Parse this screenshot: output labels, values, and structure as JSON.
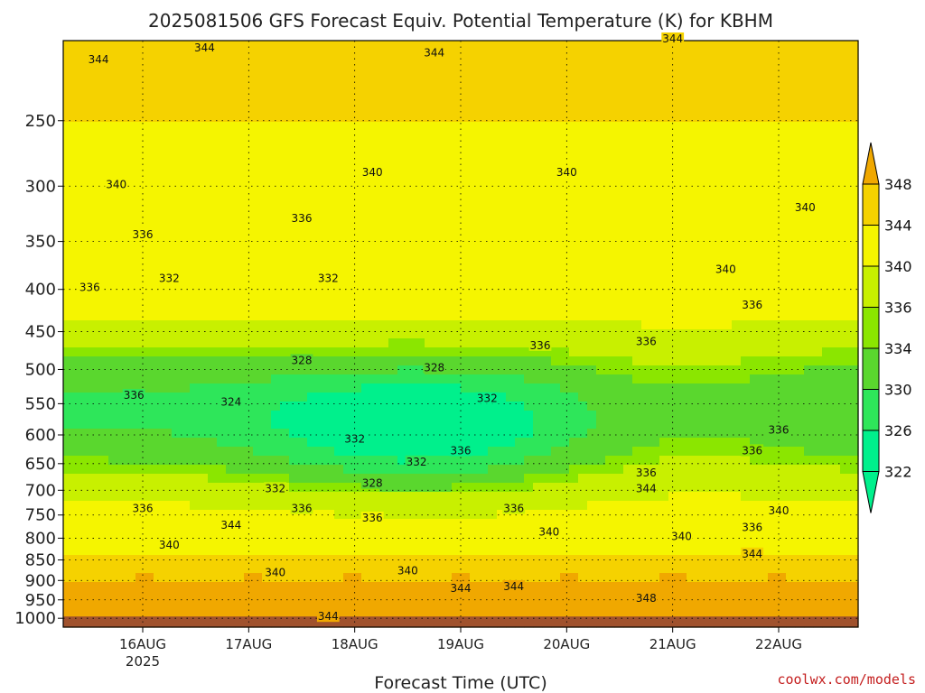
{
  "chart_data": {
    "type": "heatmap",
    "title": "2025081506 GFS Forecast Equiv. Potential Temperature (K) for KBHM",
    "xlabel": "Forecast Time (UTC)",
    "ylabel": "",
    "credit": "coolwx.com/models",
    "y_scale": "log",
    "y_reversed": true,
    "y_ticks": [
      250,
      300,
      350,
      400,
      450,
      500,
      550,
      600,
      650,
      700,
      750,
      800,
      850,
      900,
      950,
      1000
    ],
    "y_tick_labels": [
      "250",
      "300",
      "350",
      "400",
      "450",
      "500",
      "550",
      "600",
      "650",
      "700",
      "750",
      "800",
      "850",
      "900",
      "950",
      "1000"
    ],
    "ylim": [
      1025,
      200
    ],
    "xlim": [
      "2025-08-15T06:00",
      "2025-08-22T18:00"
    ],
    "x_ticks": [
      "2025-08-16T00:00",
      "2025-08-17T00:00",
      "2025-08-18T00:00",
      "2025-08-19T00:00",
      "2025-08-20T00:00",
      "2025-08-21T00:00",
      "2025-08-22T00:00"
    ],
    "x_tick_labels": [
      "16AUG",
      "17AUG",
      "18AUG",
      "19AUG",
      "20AUG",
      "21AUG",
      "22AUG"
    ],
    "x_year_label": "2025",
    "grid": true,
    "colorbar": {
      "levels": [
        322,
        326,
        330,
        334,
        336,
        340,
        344,
        348
      ],
      "labels": [
        "322",
        "326",
        "330",
        "334",
        "336",
        "340",
        "344",
        "348"
      ],
      "colors": [
        "#00f08c",
        "#2ee65a",
        "#5ad72e",
        "#8be600",
        "#c8f000",
        "#f5f500",
        "#f5d200",
        "#f0a800"
      ],
      "extend": "both"
    },
    "ground_color": "#a0522d",
    "contour_labels": [
      {
        "t": "2025-08-15T14:00",
        "p": 212,
        "v": "344"
      },
      {
        "t": "2025-08-16T14:00",
        "p": 205,
        "v": "344"
      },
      {
        "t": "2025-08-18T18:00",
        "p": 208,
        "v": "344"
      },
      {
        "t": "2025-08-21T00:00",
        "p": 200,
        "v": "344"
      },
      {
        "t": "2025-08-15T18:00",
        "p": 300,
        "v": "340"
      },
      {
        "t": "2025-08-18T04:00",
        "p": 290,
        "v": "340"
      },
      {
        "t": "2025-08-20T00:00",
        "p": 290,
        "v": "340"
      },
      {
        "t": "2025-08-22T06:00",
        "p": 320,
        "v": "340"
      },
      {
        "t": "2025-08-21T12:00",
        "p": 380,
        "v": "340"
      },
      {
        "t": "2025-08-16T00:00",
        "p": 345,
        "v": "336"
      },
      {
        "t": "2025-08-17T12:00",
        "p": 330,
        "v": "336"
      },
      {
        "t": "2025-08-15T12:00",
        "p": 400,
        "v": "336"
      },
      {
        "t": "2025-08-21T18:00",
        "p": 420,
        "v": "336"
      },
      {
        "t": "2025-08-16T06:00",
        "p": 390,
        "v": "332"
      },
      {
        "t": "2025-08-17T18:00",
        "p": 390,
        "v": "332"
      },
      {
        "t": "2025-08-17T12:00",
        "p": 490,
        "v": "328"
      },
      {
        "t": "2025-08-18T18:00",
        "p": 500,
        "v": "328"
      },
      {
        "t": "2025-08-16T20:00",
        "p": 550,
        "v": "324"
      },
      {
        "t": "2025-08-19T18:00",
        "p": 470,
        "v": "336"
      },
      {
        "t": "2025-08-20T18:00",
        "p": 465,
        "v": "336"
      },
      {
        "t": "2025-08-15T22:00",
        "p": 540,
        "v": "336"
      },
      {
        "t": "2025-08-19T06:00",
        "p": 545,
        "v": "332"
      },
      {
        "t": "2025-08-18T00:00",
        "p": 610,
        "v": "332"
      },
      {
        "t": "2025-08-18T14:00",
        "p": 650,
        "v": "332"
      },
      {
        "t": "2025-08-19T00:00",
        "p": 630,
        "v": "336"
      },
      {
        "t": "2025-08-17T06:00",
        "p": 700,
        "v": "332"
      },
      {
        "t": "2025-08-18T04:00",
        "p": 690,
        "v": "328"
      },
      {
        "t": "2025-08-22T00:00",
        "p": 595,
        "v": "336"
      },
      {
        "t": "2025-08-21T18:00",
        "p": 630,
        "v": "336"
      },
      {
        "t": "2025-08-20T18:00",
        "p": 670,
        "v": "336"
      },
      {
        "t": "2025-08-20T18:00",
        "p": 700,
        "v": "344"
      },
      {
        "t": "2025-08-16T00:00",
        "p": 740,
        "v": "336"
      },
      {
        "t": "2025-08-17T12:00",
        "p": 740,
        "v": "336"
      },
      {
        "t": "2025-08-18T04:00",
        "p": 760,
        "v": "336"
      },
      {
        "t": "2025-08-19T12:00",
        "p": 740,
        "v": "336"
      },
      {
        "t": "2025-08-16T20:00",
        "p": 775,
        "v": "344"
      },
      {
        "t": "2025-08-16T06:00",
        "p": 820,
        "v": "340"
      },
      {
        "t": "2025-08-17T06:00",
        "p": 885,
        "v": "340"
      },
      {
        "t": "2025-08-18T12:00",
        "p": 880,
        "v": "340"
      },
      {
        "t": "2025-08-19T20:00",
        "p": 790,
        "v": "340"
      },
      {
        "t": "2025-08-21T02:00",
        "p": 800,
        "v": "340"
      },
      {
        "t": "2025-08-22T00:00",
        "p": 745,
        "v": "340"
      },
      {
        "t": "2025-08-21T18:00",
        "p": 780,
        "v": "336"
      },
      {
        "t": "2025-08-21T18:00",
        "p": 840,
        "v": "344"
      },
      {
        "t": "2025-08-19T00:00",
        "p": 925,
        "v": "344"
      },
      {
        "t": "2025-08-19T12:00",
        "p": 920,
        "v": "344"
      },
      {
        "t": "2025-08-20T18:00",
        "p": 950,
        "v": "348"
      },
      {
        "t": "2025-08-17T18:00",
        "p": 1000,
        "v": "344"
      }
    ]
  }
}
